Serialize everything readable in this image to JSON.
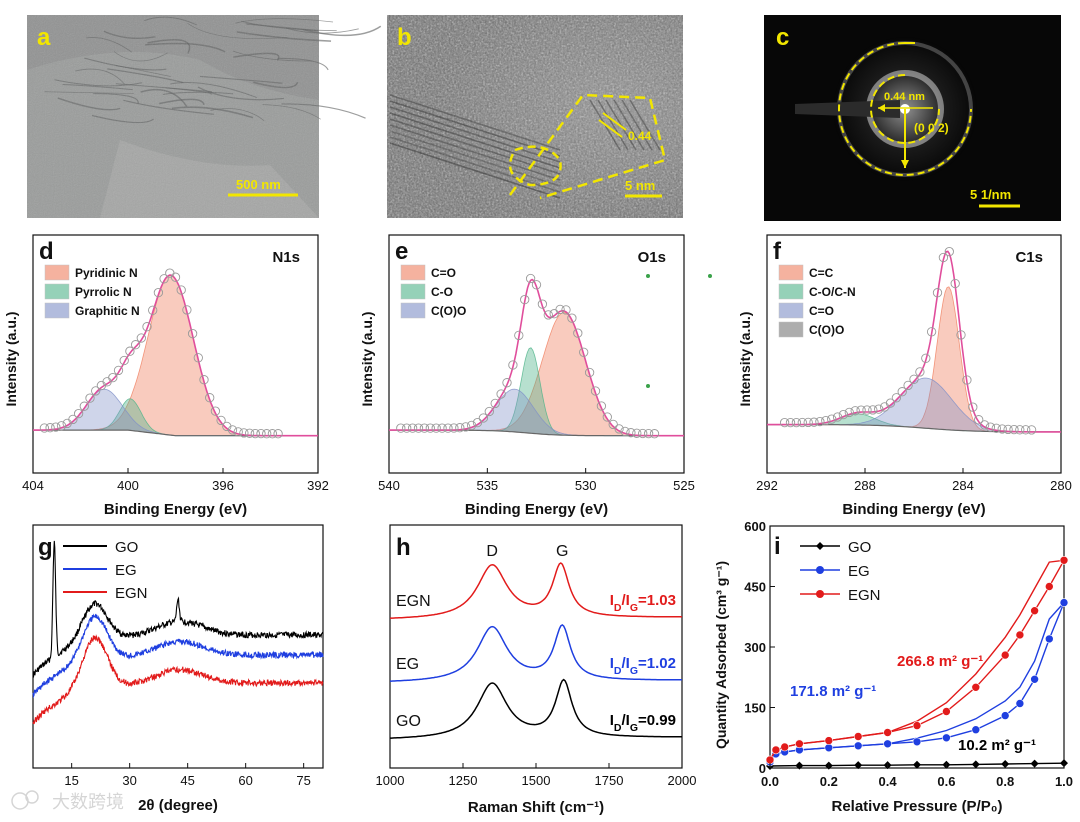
{
  "colors": {
    "yellow": "#f2e600",
    "pink_envelope": "#e04e9c",
    "GO": "#000000",
    "EG": "#1f3fe0",
    "EGN": "#e21b1b",
    "peak1": "#f08060",
    "peak2": "#4fb48a",
    "peak3": "#7f90c8",
    "peak4": "#777777",
    "dot_green": "#3aa24a"
  },
  "image_panels": {
    "a": {
      "letter": "a",
      "scalebar": "500 nm"
    },
    "b": {
      "letter": "b",
      "scalebar": "5 nm",
      "lattice": "0.44"
    },
    "c": {
      "letter": "c",
      "scalebar": "5 1/nm",
      "ring_label": "0.44 nm",
      "plane": "(0 0 2)"
    }
  },
  "watermark": "大数跨境",
  "chart_data": [
    {
      "id": "d",
      "letter": "d",
      "type": "area",
      "title": "N1s",
      "xlabel": "Binding Energy (eV)",
      "ylabel": "Intensity (a.u.)",
      "xlim": [
        404,
        392
      ],
      "xticks": [
        "404",
        "400",
        "396",
        "392"
      ],
      "ylim": [
        0,
        1
      ],
      "legend": "top-left",
      "series": [
        {
          "name": "Pyridinic N",
          "center": 398.2,
          "height": 0.86,
          "sigma": 0.95
        },
        {
          "name": "Pyrrolic N",
          "center": 399.9,
          "height": 0.17,
          "sigma": 0.45
        },
        {
          "name": "Graphitic N",
          "center": 401.0,
          "height": 0.22,
          "sigma": 0.75
        }
      ]
    },
    {
      "id": "e",
      "letter": "e",
      "type": "area",
      "title": "O1s",
      "xlabel": "Binding Energy (eV)",
      "ylabel": "Intensity (a.u.)",
      "xlim": [
        540,
        525
      ],
      "xticks": [
        "540",
        "535",
        "530",
        "525"
      ],
      "ylim": [
        0,
        1
      ],
      "legend": "top-left",
      "series": [
        {
          "name": "C=O",
          "center": 531.1,
          "height": 0.66,
          "sigma": 1.1
        },
        {
          "name": "C-O",
          "center": 532.8,
          "height": 0.46,
          "sigma": 0.48
        },
        {
          "name": "C(O)O",
          "center": 533.6,
          "height": 0.23,
          "sigma": 0.95
        }
      ]
    },
    {
      "id": "f",
      "letter": "f",
      "type": "area",
      "title": "C1s",
      "xlabel": "Binding Energy (eV)",
      "ylabel": "Intensity (a.u.)",
      "xlim": [
        292,
        280
      ],
      "xticks": [
        "292",
        "288",
        "284",
        "280"
      ],
      "ylim": [
        0,
        1
      ],
      "legend": "top-left",
      "series": [
        {
          "name": "C=C",
          "center": 284.6,
          "height": 0.77,
          "sigma": 0.45
        },
        {
          "name": "C-O/C-N",
          "center": 288.3,
          "height": 0.06,
          "sigma": 0.7
        },
        {
          "name": "C=O",
          "center": 285.5,
          "height": 0.27,
          "sigma": 1.05
        },
        {
          "name": "C(O)O",
          "center": 0,
          "height": 0,
          "sigma": 1
        }
      ]
    },
    {
      "id": "g",
      "letter": "g",
      "type": "line",
      "xlabel": "2θ (degree)",
      "ylabel": "",
      "xlim": [
        5,
        80
      ],
      "xticks": [
        15,
        30,
        45,
        60,
        75
      ],
      "legend": "top-left",
      "series": [
        {
          "name": "GO"
        },
        {
          "name": "EG"
        },
        {
          "name": "EGN"
        }
      ]
    },
    {
      "id": "h",
      "letter": "h",
      "type": "line",
      "xlabel": "Raman Shift (cm⁻¹)",
      "ylabel": "",
      "xlim": [
        1000,
        2000
      ],
      "xticks": [
        1000,
        1250,
        1500,
        1750,
        2000
      ],
      "band_labels": [
        "D",
        "G"
      ],
      "series": [
        {
          "name": "EGN",
          "ratio": "1.03",
          "d_center": 1350,
          "g_center": 1585,
          "d_height": 0.92,
          "g_height": 0.9
        },
        {
          "name": "EG",
          "ratio": "1.02",
          "d_center": 1350,
          "g_center": 1590,
          "d_height": 0.94,
          "g_height": 0.92
        },
        {
          "name": "GO",
          "ratio": "0.99",
          "d_center": 1350,
          "g_center": 1595,
          "d_height": 0.95,
          "g_height": 0.96
        }
      ]
    },
    {
      "id": "i",
      "letter": "i",
      "type": "scatter",
      "xlabel": "Relative Pressure (P/P₀)",
      "ylabel": "Quantity Adsorbed (cm³ g⁻¹)",
      "xlim": [
        0,
        1.0
      ],
      "ylim": [
        0,
        600
      ],
      "xticks": [
        "0.0",
        "0.2",
        "0.4",
        "0.6",
        "0.8",
        "1.0"
      ],
      "yticks": [
        "0",
        "150",
        "300",
        "450",
        "600"
      ],
      "legend": "top-left",
      "series": [
        {
          "name": "GO",
          "surface_area": "10.2 m² g⁻¹",
          "x": [
            0.0,
            0.1,
            0.2,
            0.3,
            0.4,
            0.5,
            0.6,
            0.7,
            0.8,
            0.9,
            1.0
          ],
          "y": [
            5,
            6,
            6,
            7,
            7,
            8,
            8,
            9,
            10,
            11,
            12
          ]
        },
        {
          "name": "EG",
          "surface_area": "171.8 m² g⁻¹",
          "x": [
            0.0,
            0.02,
            0.05,
            0.1,
            0.2,
            0.3,
            0.4,
            0.5,
            0.6,
            0.7,
            0.8,
            0.85,
            0.9,
            0.95,
            1.0
          ],
          "y": [
            15,
            35,
            40,
            45,
            50,
            55,
            60,
            65,
            75,
            95,
            130,
            160,
            220,
            320,
            410
          ]
        },
        {
          "name": "EGN",
          "surface_area": "266.8 m² g⁻¹",
          "x": [
            0.0,
            0.02,
            0.05,
            0.1,
            0.2,
            0.3,
            0.4,
            0.5,
            0.6,
            0.7,
            0.8,
            0.85,
            0.9,
            0.95,
            1.0
          ],
          "y": [
            20,
            45,
            52,
            60,
            68,
            78,
            88,
            105,
            140,
            200,
            280,
            330,
            390,
            450,
            515
          ]
        }
      ]
    }
  ]
}
